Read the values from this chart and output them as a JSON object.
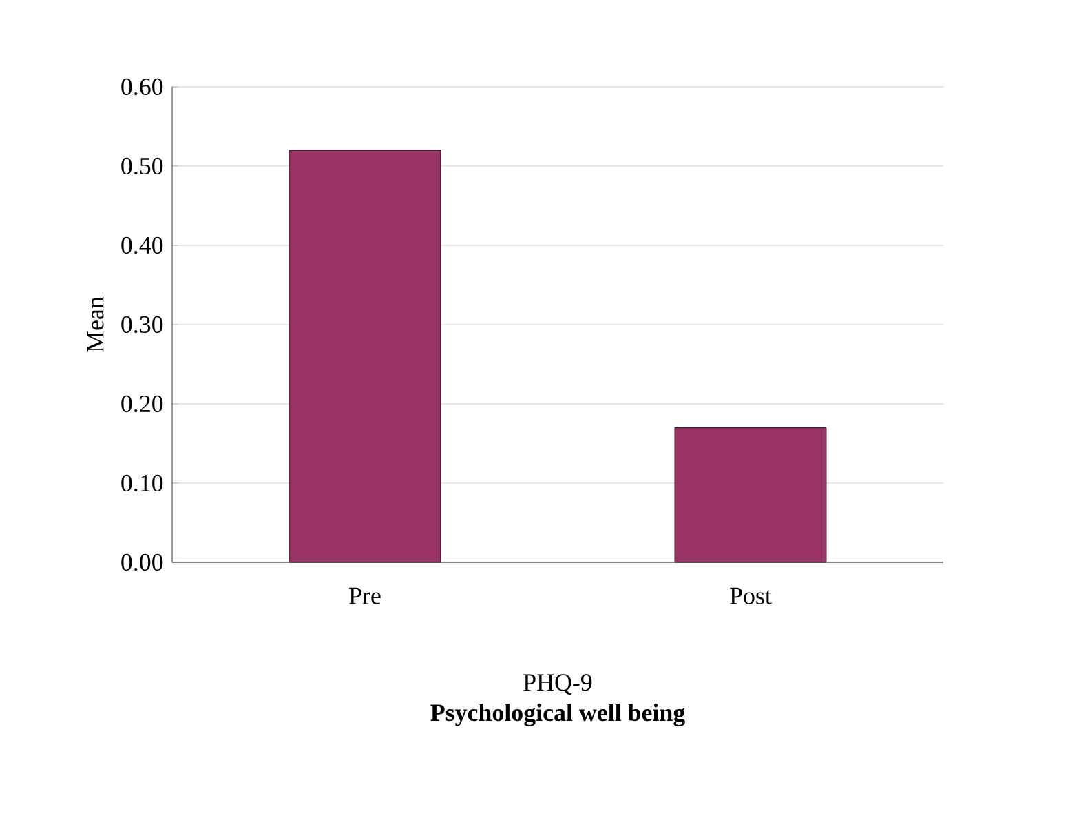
{
  "chart_data": {
    "type": "bar",
    "xlabel": "Psychological well being",
    "ylabel": "Mean",
    "categories": [
      "Pre",
      "Post"
    ],
    "values": [
      0.52,
      0.17
    ],
    "color": "#993366",
    "ylim": [
      0,
      0.6
    ],
    "yticks": [
      {
        "value": 0,
        "label": "0.00"
      },
      {
        "value": 0.1,
        "label": "0.10"
      },
      {
        "value": 0.2,
        "label": "0.20"
      },
      {
        "value": 0.3,
        "label": "0.30"
      },
      {
        "value": 0.4,
        "label": "0.40"
      },
      {
        "value": 0.5,
        "label": "0.50"
      },
      {
        "value": 0.6,
        "label": "0.60"
      }
    ],
    "grid": "y",
    "annotations": [
      "PHQ-9"
    ]
  }
}
